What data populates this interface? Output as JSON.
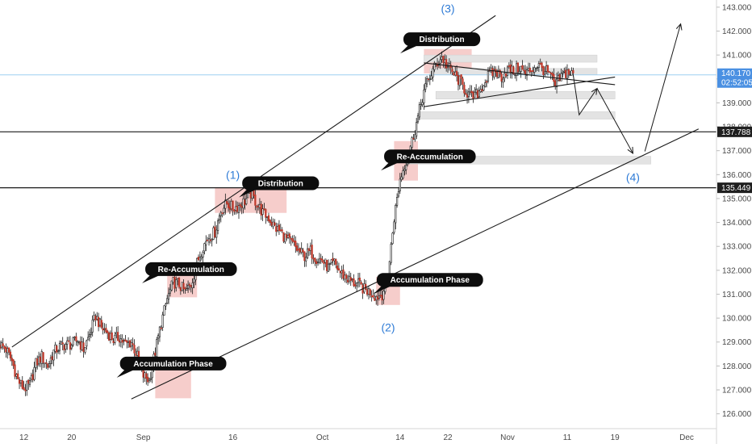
{
  "chart_data": {
    "type": "candlestick",
    "title": "",
    "colors": {
      "up": "#ffffff",
      "up_border": "#1a1a1a",
      "down": "#c0392b",
      "zone": "#f2b8b5",
      "grey_zone": "#e3e3e3",
      "wave_label": "#2e7bd6",
      "last_price_line": "#9ed0f0",
      "axis_tag_dark": "#1f1f1f",
      "axis_tag_price": "#4a90e2"
    },
    "x_axis": {
      "range": [
        "2018-08-08",
        "2018-12-06"
      ],
      "ticks": [
        {
          "date": "2018-08-12",
          "label": "12"
        },
        {
          "date": "2018-08-20",
          "label": "20"
        },
        {
          "date": "2018-09-01",
          "label": "Sep"
        },
        {
          "date": "2018-09-16",
          "label": "16"
        },
        {
          "date": "2018-10-01",
          "label": "Oct"
        },
        {
          "date": "2018-10-14",
          "label": "14"
        },
        {
          "date": "2018-10-22",
          "label": "22"
        },
        {
          "date": "2018-11-01",
          "label": "Nov"
        },
        {
          "date": "2018-11-11",
          "label": "11"
        },
        {
          "date": "2018-11-19",
          "label": "19"
        },
        {
          "date": "2018-12-01",
          "label": "Dec"
        }
      ]
    },
    "y_axis": {
      "range": [
        125.38,
        143.3
      ],
      "ticks": [
        {
          "value": 126.0,
          "label": "126.000"
        },
        {
          "value": 127.0,
          "label": "127.000"
        },
        {
          "value": 128.0,
          "label": "128.000"
        },
        {
          "value": 129.0,
          "label": "129.000"
        },
        {
          "value": 130.0,
          "label": "130.000"
        },
        {
          "value": 131.0,
          "label": "131.000"
        },
        {
          "value": 132.0,
          "label": "132.000"
        },
        {
          "value": 133.0,
          "label": "133.000"
        },
        {
          "value": 134.0,
          "label": "134.000"
        },
        {
          "value": 135.0,
          "label": "135.000"
        },
        {
          "value": 136.0,
          "label": "136.000"
        },
        {
          "value": 137.0,
          "label": "137.000"
        },
        {
          "value": 138.0,
          "label": "138.000"
        },
        {
          "value": 139.0,
          "label": "139.000"
        },
        {
          "value": 140.0,
          "label": "140.000"
        },
        {
          "value": 141.0,
          "label": "141.000"
        },
        {
          "value": 142.0,
          "label": "142.000"
        },
        {
          "value": 143.0,
          "label": "143.000"
        }
      ]
    },
    "price_tags": [
      {
        "value": 137.788,
        "label": "137.788",
        "style": "dark"
      },
      {
        "value": 135.449,
        "label": "135.449",
        "style": "dark"
      },
      {
        "value": 140.17,
        "label": "140.170",
        "style": "price",
        "sub": "02:52:05"
      }
    ],
    "horizontal_lines": [
      137.788,
      135.449
    ],
    "last_price": 140.17,
    "series": [
      {
        "x": "2018-08-08",
        "y": 128.9
      },
      {
        "x": "2018-08-09",
        "y": 128.7
      },
      {
        "x": "2018-08-10",
        "y": 128.2
      },
      {
        "x": "2018-08-11",
        "y": 127.4
      },
      {
        "x": "2018-08-12",
        "y": 127.05
      },
      {
        "x": "2018-08-13",
        "y": 127.2
      },
      {
        "x": "2018-08-14",
        "y": 128.1
      },
      {
        "x": "2018-08-15",
        "y": 128.4
      },
      {
        "x": "2018-08-16",
        "y": 128.0
      },
      {
        "x": "2018-08-17",
        "y": 128.6
      },
      {
        "x": "2018-08-18",
        "y": 128.8
      },
      {
        "x": "2018-08-19",
        "y": 128.9
      },
      {
        "x": "2018-08-20",
        "y": 128.9
      },
      {
        "x": "2018-08-21",
        "y": 129.1
      },
      {
        "x": "2018-08-22",
        "y": 128.7
      },
      {
        "x": "2018-08-23",
        "y": 129.3
      },
      {
        "x": "2018-08-24",
        "y": 130.1
      },
      {
        "x": "2018-08-25",
        "y": 129.6
      },
      {
        "x": "2018-08-26",
        "y": 129.4
      },
      {
        "x": "2018-08-27",
        "y": 129.1
      },
      {
        "x": "2018-08-28",
        "y": 129.2
      },
      {
        "x": "2018-08-29",
        "y": 128.9
      },
      {
        "x": "2018-08-30",
        "y": 129.0
      },
      {
        "x": "2018-08-31",
        "y": 128.4
      },
      {
        "x": "2018-09-01",
        "y": 127.6
      },
      {
        "x": "2018-09-02",
        "y": 127.4
      },
      {
        "x": "2018-09-03",
        "y": 128.6
      },
      {
        "x": "2018-09-04",
        "y": 129.8
      },
      {
        "x": "2018-09-05",
        "y": 130.8
      },
      {
        "x": "2018-09-06",
        "y": 131.5
      },
      {
        "x": "2018-09-07",
        "y": 131.4
      },
      {
        "x": "2018-09-08",
        "y": 131.1
      },
      {
        "x": "2018-09-09",
        "y": 131.4
      },
      {
        "x": "2018-09-10",
        "y": 132.3
      },
      {
        "x": "2018-09-11",
        "y": 133.0
      },
      {
        "x": "2018-09-12",
        "y": 133.4
      },
      {
        "x": "2018-09-13",
        "y": 133.6
      },
      {
        "x": "2018-09-14",
        "y": 134.5
      },
      {
        "x": "2018-09-15",
        "y": 134.8
      },
      {
        "x": "2018-09-16",
        "y": 134.6
      },
      {
        "x": "2018-09-17",
        "y": 134.7
      },
      {
        "x": "2018-09-18",
        "y": 134.9
      },
      {
        "x": "2018-09-19",
        "y": 135.2
      },
      {
        "x": "2018-09-20",
        "y": 134.8
      },
      {
        "x": "2018-09-21",
        "y": 134.4
      },
      {
        "x": "2018-09-22",
        "y": 134.2
      },
      {
        "x": "2018-09-23",
        "y": 133.8
      },
      {
        "x": "2018-09-24",
        "y": 133.6
      },
      {
        "x": "2018-09-25",
        "y": 133.3
      },
      {
        "x": "2018-09-26",
        "y": 133.1
      },
      {
        "x": "2018-09-27",
        "y": 132.8
      },
      {
        "x": "2018-09-28",
        "y": 132.6
      },
      {
        "x": "2018-09-29",
        "y": 132.8
      },
      {
        "x": "2018-09-30",
        "y": 132.5
      },
      {
        "x": "2018-10-01",
        "y": 132.4
      },
      {
        "x": "2018-10-02",
        "y": 132.1
      },
      {
        "x": "2018-10-03",
        "y": 132.3
      },
      {
        "x": "2018-10-04",
        "y": 131.9
      },
      {
        "x": "2018-10-05",
        "y": 131.7
      },
      {
        "x": "2018-10-06",
        "y": 131.5
      },
      {
        "x": "2018-10-07",
        "y": 131.4
      },
      {
        "x": "2018-10-08",
        "y": 131.2
      },
      {
        "x": "2018-10-09",
        "y": 131.1
      },
      {
        "x": "2018-10-10",
        "y": 130.9
      },
      {
        "x": "2018-10-11",
        "y": 131.0
      },
      {
        "x": "2018-10-12",
        "y": 131.8
      },
      {
        "x": "2018-10-13",
        "y": 134.2
      },
      {
        "x": "2018-10-14",
        "y": 135.8
      },
      {
        "x": "2018-10-15",
        "y": 136.6
      },
      {
        "x": "2018-10-16",
        "y": 137.4
      },
      {
        "x": "2018-10-17",
        "y": 138.4
      },
      {
        "x": "2018-10-18",
        "y": 139.5
      },
      {
        "x": "2018-10-19",
        "y": 140.1
      },
      {
        "x": "2018-10-20",
        "y": 140.6
      },
      {
        "x": "2018-10-21",
        "y": 140.9
      },
      {
        "x": "2018-10-22",
        "y": 140.5
      },
      {
        "x": "2018-10-23",
        "y": 140.2
      },
      {
        "x": "2018-10-24",
        "y": 139.9
      },
      {
        "x": "2018-10-25",
        "y": 139.5
      },
      {
        "x": "2018-10-26",
        "y": 139.2
      },
      {
        "x": "2018-10-27",
        "y": 139.4
      },
      {
        "x": "2018-10-28",
        "y": 139.8
      },
      {
        "x": "2018-10-29",
        "y": 140.2
      },
      {
        "x": "2018-10-30",
        "y": 140.3
      },
      {
        "x": "2018-10-31",
        "y": 140.1
      },
      {
        "x": "2018-11-01",
        "y": 140.4
      },
      {
        "x": "2018-11-02",
        "y": 140.3
      },
      {
        "x": "2018-11-03",
        "y": 140.5
      },
      {
        "x": "2018-11-04",
        "y": 140.2
      },
      {
        "x": "2018-11-05",
        "y": 140.4
      },
      {
        "x": "2018-11-06",
        "y": 140.6
      },
      {
        "x": "2018-11-07",
        "y": 140.4
      },
      {
        "x": "2018-11-08",
        "y": 140.2
      },
      {
        "x": "2018-11-09",
        "y": 139.7
      },
      {
        "x": "2018-11-10",
        "y": 140.1
      },
      {
        "x": "2018-11-11",
        "y": 140.3
      },
      {
        "x": "2018-11-12",
        "y": 140.17
      }
    ],
    "zones": [
      {
        "x0": "2018-09-03",
        "x1": "2018-09-09",
        "y0": 126.65,
        "y1": 127.88
      },
      {
        "x0": "2018-09-05",
        "x1": "2018-09-10",
        "y0": 130.87,
        "y1": 132.0
      },
      {
        "x0": "2018-09-13",
        "x1": "2018-09-25",
        "y0": 134.4,
        "y1": 135.45
      },
      {
        "x0": "2018-10-10",
        "x1": "2018-10-14",
        "y0": 130.55,
        "y1": 131.73
      },
      {
        "x0": "2018-10-13",
        "x1": "2018-10-17",
        "y0": 135.75,
        "y1": 137.4
      },
      {
        "x0": "2018-10-18",
        "x1": "2018-10-26",
        "y0": 140.23,
        "y1": 141.25
      }
    ],
    "grey_zones": [
      {
        "x0": "2018-10-18",
        "x1": "2018-11-16",
        "y0": 140.7,
        "y1": 141.0
      },
      {
        "x0": "2018-10-19",
        "x1": "2018-11-16",
        "y0": 140.17,
        "y1": 140.44
      },
      {
        "x0": "2018-10-20",
        "x1": "2018-11-19",
        "y0": 139.16,
        "y1": 139.48
      },
      {
        "x0": "2018-10-17",
        "x1": "2018-11-19",
        "y0": 138.32,
        "y1": 138.63
      },
      {
        "x0": "2018-10-15",
        "x1": "2018-11-25",
        "y0": 136.44,
        "y1": 136.77
      }
    ],
    "trend_lines": [
      {
        "x0": "2018-08-10",
        "y0": 128.79,
        "x1": "2018-10-30",
        "y1": 142.65
      },
      {
        "x0": "2018-08-30",
        "y0": 126.62,
        "x1": "2018-12-03",
        "y1": 137.91
      },
      {
        "x0": "2018-10-18",
        "y0": 140.67,
        "x1": "2018-11-19",
        "y1": 139.76
      },
      {
        "x0": "2018-10-18",
        "y0": 138.84,
        "x1": "2018-11-19",
        "y1": 140.08
      }
    ],
    "arrows": [
      {
        "points": [
          [
            "2018-11-12",
            140.17
          ],
          [
            "2018-11-13",
            138.5
          ],
          [
            "2018-11-16",
            139.6
          ]
        ]
      },
      {
        "points": [
          [
            "2018-11-16",
            139.6
          ],
          [
            "2018-11-22",
            136.89
          ]
        ]
      },
      {
        "points": [
          [
            "2018-11-24",
            136.97
          ],
          [
            "2018-11-30",
            142.3
          ]
        ]
      }
    ],
    "callouts": [
      {
        "text": "Accumulation Phase",
        "x": "2018-09-06",
        "y": 128.1
      },
      {
        "text": "Re-Accumulation",
        "x": "2018-09-09",
        "y": 132.05
      },
      {
        "text": "Distribution",
        "x": "2018-09-24",
        "y": 135.64
      },
      {
        "text": "Accumulation Phase",
        "x": "2018-10-19",
        "y": 131.6
      },
      {
        "text": "Re-Accumulation",
        "x": "2018-10-19",
        "y": 136.76
      },
      {
        "text": "Distribution",
        "x": "2018-10-21",
        "y": 141.66
      }
    ],
    "wave_labels": [
      {
        "text": "(1)",
        "x": "2018-09-16",
        "y": 136.0
      },
      {
        "text": "(2)",
        "x": "2018-10-12",
        "y": 129.62
      },
      {
        "text": "(3)",
        "x": "2018-10-22",
        "y": 142.95
      },
      {
        "text": "(4)",
        "x": "2018-11-22",
        "y": 135.9
      }
    ]
  }
}
